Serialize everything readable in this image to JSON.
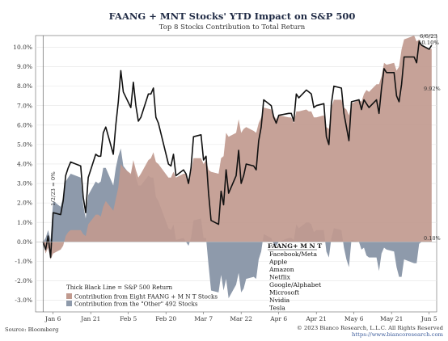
{
  "title": "FAANG + MNT Stocks' YTD Impact on S&P 500",
  "subtitle": "Top 8 Stocks Contribution to Total Return",
  "source": "Source: Bloomberg",
  "copyright": "© 2023 Bianco Research, L.L.C. All Rights Reserved",
  "website": "https://www.biancoresearch.com",
  "start_marker": "1/2/23 = 0%",
  "end_date_label": "6/6/23",
  "end_value_label": "10.10%",
  "label_faang_end": "9.92%",
  "label_other_end": "0.18%",
  "legend": {
    "line": "Thick Black Line = S&P 500 Return",
    "faang": "Contribution from Eight FAANG + M N T Stocks",
    "other": "Contribution from the \"Other\" 492 Stocks"
  },
  "stock_list": {
    "heading": "FAANG+ M N T",
    "items": [
      "Facebook/Meta",
      "Apple",
      "Amazon",
      "Netflix",
      "Google/Alphabet",
      "Microsoft",
      "Nvidia",
      "Tesla"
    ]
  },
  "colors": {
    "faang_fill": "#c19a8f",
    "other_fill": "#8e9aab",
    "line": "#111111",
    "title": "#1f2a44"
  },
  "chart_data": {
    "type": "area",
    "title": "FAANG + MNT Stocks' YTD Impact on S&P 500",
    "subtitle": "Top 8 Stocks Contribution to Total Return",
    "x_tick_labels": [
      "Jan 6",
      "Jan 21",
      "Feb 5",
      "Feb 20",
      "Mar 7",
      "Mar 22",
      "Apr 6",
      "Apr 21",
      "May 6",
      "May 21",
      "Jun 5"
    ],
    "x_tick_dates": [
      "2023-01-06",
      "2023-01-21",
      "2023-02-05",
      "2023-02-20",
      "2023-03-07",
      "2023-03-22",
      "2023-04-06",
      "2023-04-21",
      "2023-05-06",
      "2023-05-21",
      "2023-06-05"
    ],
    "y_tick_labels": [
      "-3.0%",
      "-2.0%",
      "-1.0%",
      "0.0%",
      "1.0%",
      "2.0%",
      "3.0%",
      "4.0%",
      "5.0%",
      "6.0%",
      "7.0%",
      "8.0%",
      "9.0%",
      "10.0%"
    ],
    "ylim": [
      -3.6,
      10.6
    ],
    "xlim": [
      "2022-12-30",
      "2023-06-08"
    ],
    "grid": "horizontal",
    "x": [
      "2023-01-02",
      "2023-01-03",
      "2023-01-04",
      "2023-01-05",
      "2023-01-06",
      "2023-01-09",
      "2023-01-10",
      "2023-01-11",
      "2023-01-12",
      "2023-01-13",
      "2023-01-17",
      "2023-01-18",
      "2023-01-19",
      "2023-01-20",
      "2023-01-23",
      "2023-01-24",
      "2023-01-25",
      "2023-01-26",
      "2023-01-27",
      "2023-01-30",
      "2023-01-31",
      "2023-02-01",
      "2023-02-02",
      "2023-02-03",
      "2023-02-06",
      "2023-02-07",
      "2023-02-08",
      "2023-02-09",
      "2023-02-10",
      "2023-02-13",
      "2023-02-14",
      "2023-02-15",
      "2023-02-16",
      "2023-02-17",
      "2023-02-21",
      "2023-02-22",
      "2023-02-23",
      "2023-02-24",
      "2023-02-27",
      "2023-02-28",
      "2023-03-01",
      "2023-03-02",
      "2023-03-03",
      "2023-03-06",
      "2023-03-07",
      "2023-03-08",
      "2023-03-09",
      "2023-03-10",
      "2023-03-13",
      "2023-03-14",
      "2023-03-15",
      "2023-03-16",
      "2023-03-17",
      "2023-03-20",
      "2023-03-21",
      "2023-03-22",
      "2023-03-23",
      "2023-03-24",
      "2023-03-27",
      "2023-03-28",
      "2023-03-29",
      "2023-03-30",
      "2023-03-31",
      "2023-04-03",
      "2023-04-04",
      "2023-04-05",
      "2023-04-06",
      "2023-04-10",
      "2023-04-11",
      "2023-04-12",
      "2023-04-13",
      "2023-04-14",
      "2023-04-17",
      "2023-04-18",
      "2023-04-19",
      "2023-04-20",
      "2023-04-21",
      "2023-04-24",
      "2023-04-25",
      "2023-04-26",
      "2023-04-27",
      "2023-04-28",
      "2023-05-01",
      "2023-05-02",
      "2023-05-03",
      "2023-05-04",
      "2023-05-05",
      "2023-05-08",
      "2023-05-09",
      "2023-05-10",
      "2023-05-11",
      "2023-05-12",
      "2023-05-15",
      "2023-05-16",
      "2023-05-17",
      "2023-05-18",
      "2023-05-19",
      "2023-05-22",
      "2023-05-23",
      "2023-05-24",
      "2023-05-25",
      "2023-05-26",
      "2023-05-30",
      "2023-05-31",
      "2023-06-01",
      "2023-06-02",
      "2023-06-05",
      "2023-06-06"
    ],
    "series": [
      {
        "name": "Thick Black Line = S&P 500 Return",
        "values": [
          0.0,
          -0.4,
          0.3,
          -0.8,
          1.5,
          1.4,
          2.1,
          3.4,
          3.8,
          4.1,
          3.9,
          2.3,
          1.5,
          3.3,
          4.5,
          4.4,
          4.4,
          5.6,
          5.9,
          4.5,
          6.0,
          7.2,
          8.8,
          7.7,
          6.9,
          8.2,
          7.0,
          6.2,
          6.4,
          7.6,
          7.6,
          7.9,
          6.4,
          6.1,
          4.0,
          3.9,
          4.5,
          3.4,
          3.7,
          3.5,
          3.0,
          3.8,
          5.4,
          5.5,
          4.2,
          4.4,
          2.5,
          1.1,
          0.9,
          2.6,
          1.9,
          3.7,
          2.5,
          3.4,
          4.7,
          3.0,
          3.4,
          4.0,
          3.9,
          3.7,
          5.2,
          5.9,
          7.3,
          7.0,
          6.4,
          6.1,
          6.5,
          6.6,
          6.6,
          6.2,
          7.6,
          7.4,
          7.8,
          7.7,
          7.6,
          6.9,
          7.0,
          7.1,
          5.4,
          5.0,
          7.1,
          8.0,
          7.9,
          6.6,
          5.9,
          5.2,
          7.2,
          7.3,
          6.8,
          7.3,
          7.1,
          6.9,
          7.3,
          6.6,
          7.9,
          8.9,
          8.7,
          8.7,
          7.5,
          7.2,
          8.1,
          9.5,
          9.5,
          9.2,
          10.3,
          10.1,
          9.9,
          10.1
        ]
      },
      {
        "name": "Contribution from Eight FAANG + M N T Stocks",
        "values": [
          0.0,
          -0.6,
          -0.3,
          -0.9,
          -0.6,
          -0.4,
          -0.2,
          0.3,
          0.5,
          0.6,
          0.6,
          0.4,
          0.3,
          0.9,
          1.4,
          1.4,
          1.3,
          1.8,
          2.1,
          1.6,
          2.2,
          2.8,
          4.0,
          3.8,
          3.5,
          4.2,
          3.7,
          3.3,
          3.5,
          4.2,
          4.3,
          4.6,
          4.1,
          4.0,
          3.3,
          3.3,
          3.6,
          3.3,
          3.5,
          3.5,
          3.2,
          3.6,
          4.3,
          4.3,
          4.0,
          4.2,
          3.7,
          3.6,
          3.5,
          4.3,
          4.4,
          5.6,
          5.4,
          5.6,
          6.3,
          5.6,
          5.8,
          5.9,
          5.7,
          5.6,
          6.1,
          6.4,
          6.9,
          6.8,
          6.5,
          6.3,
          6.5,
          6.4,
          6.4,
          6.1,
          6.7,
          6.7,
          6.8,
          6.7,
          6.7,
          6.4,
          6.4,
          6.5,
          5.9,
          5.8,
          6.9,
          7.3,
          7.3,
          6.9,
          6.8,
          6.5,
          7.1,
          7.3,
          7.2,
          7.6,
          7.8,
          7.7,
          8.1,
          8.1,
          8.5,
          9.2,
          9.1,
          9.2,
          8.8,
          9.0,
          9.9,
          10.4,
          10.6,
          10.3,
          10.4,
          10.1,
          9.9,
          9.92
        ]
      },
      {
        "name": "Contribution from the \"Other\" 492 Stocks",
        "values": [
          0.0,
          0.2,
          0.6,
          0.1,
          2.1,
          1.8,
          2.3,
          3.1,
          3.3,
          3.5,
          3.3,
          1.9,
          1.2,
          2.4,
          3.1,
          3.0,
          3.1,
          3.8,
          3.8,
          2.9,
          3.8,
          4.4,
          4.8,
          3.9,
          3.4,
          4.0,
          3.3,
          2.9,
          2.9,
          3.4,
          3.3,
          3.3,
          2.3,
          2.1,
          0.7,
          0.6,
          0.9,
          0.1,
          0.2,
          0.0,
          -0.2,
          0.2,
          1.1,
          1.2,
          0.2,
          0.2,
          -1.2,
          -2.5,
          -2.6,
          -1.7,
          -2.5,
          -1.9,
          -2.9,
          -2.2,
          -1.6,
          -2.6,
          -2.4,
          -1.9,
          -1.8,
          -1.9,
          -0.9,
          -0.5,
          0.4,
          0.2,
          -0.1,
          -0.2,
          0.0,
          0.2,
          0.2,
          0.1,
          0.9,
          0.7,
          1.0,
          1.0,
          0.9,
          0.5,
          0.6,
          0.6,
          -0.5,
          -0.8,
          0.2,
          0.7,
          0.6,
          -0.3,
          -0.9,
          -1.3,
          0.1,
          0.0,
          -0.4,
          -0.3,
          -0.7,
          -0.8,
          -0.8,
          -1.5,
          -0.6,
          -0.3,
          -0.4,
          -0.5,
          -1.3,
          -1.8,
          -1.8,
          -0.9,
          -1.1,
          -1.1,
          -0.1,
          0.0,
          0.0,
          0.18
        ]
      }
    ]
  }
}
